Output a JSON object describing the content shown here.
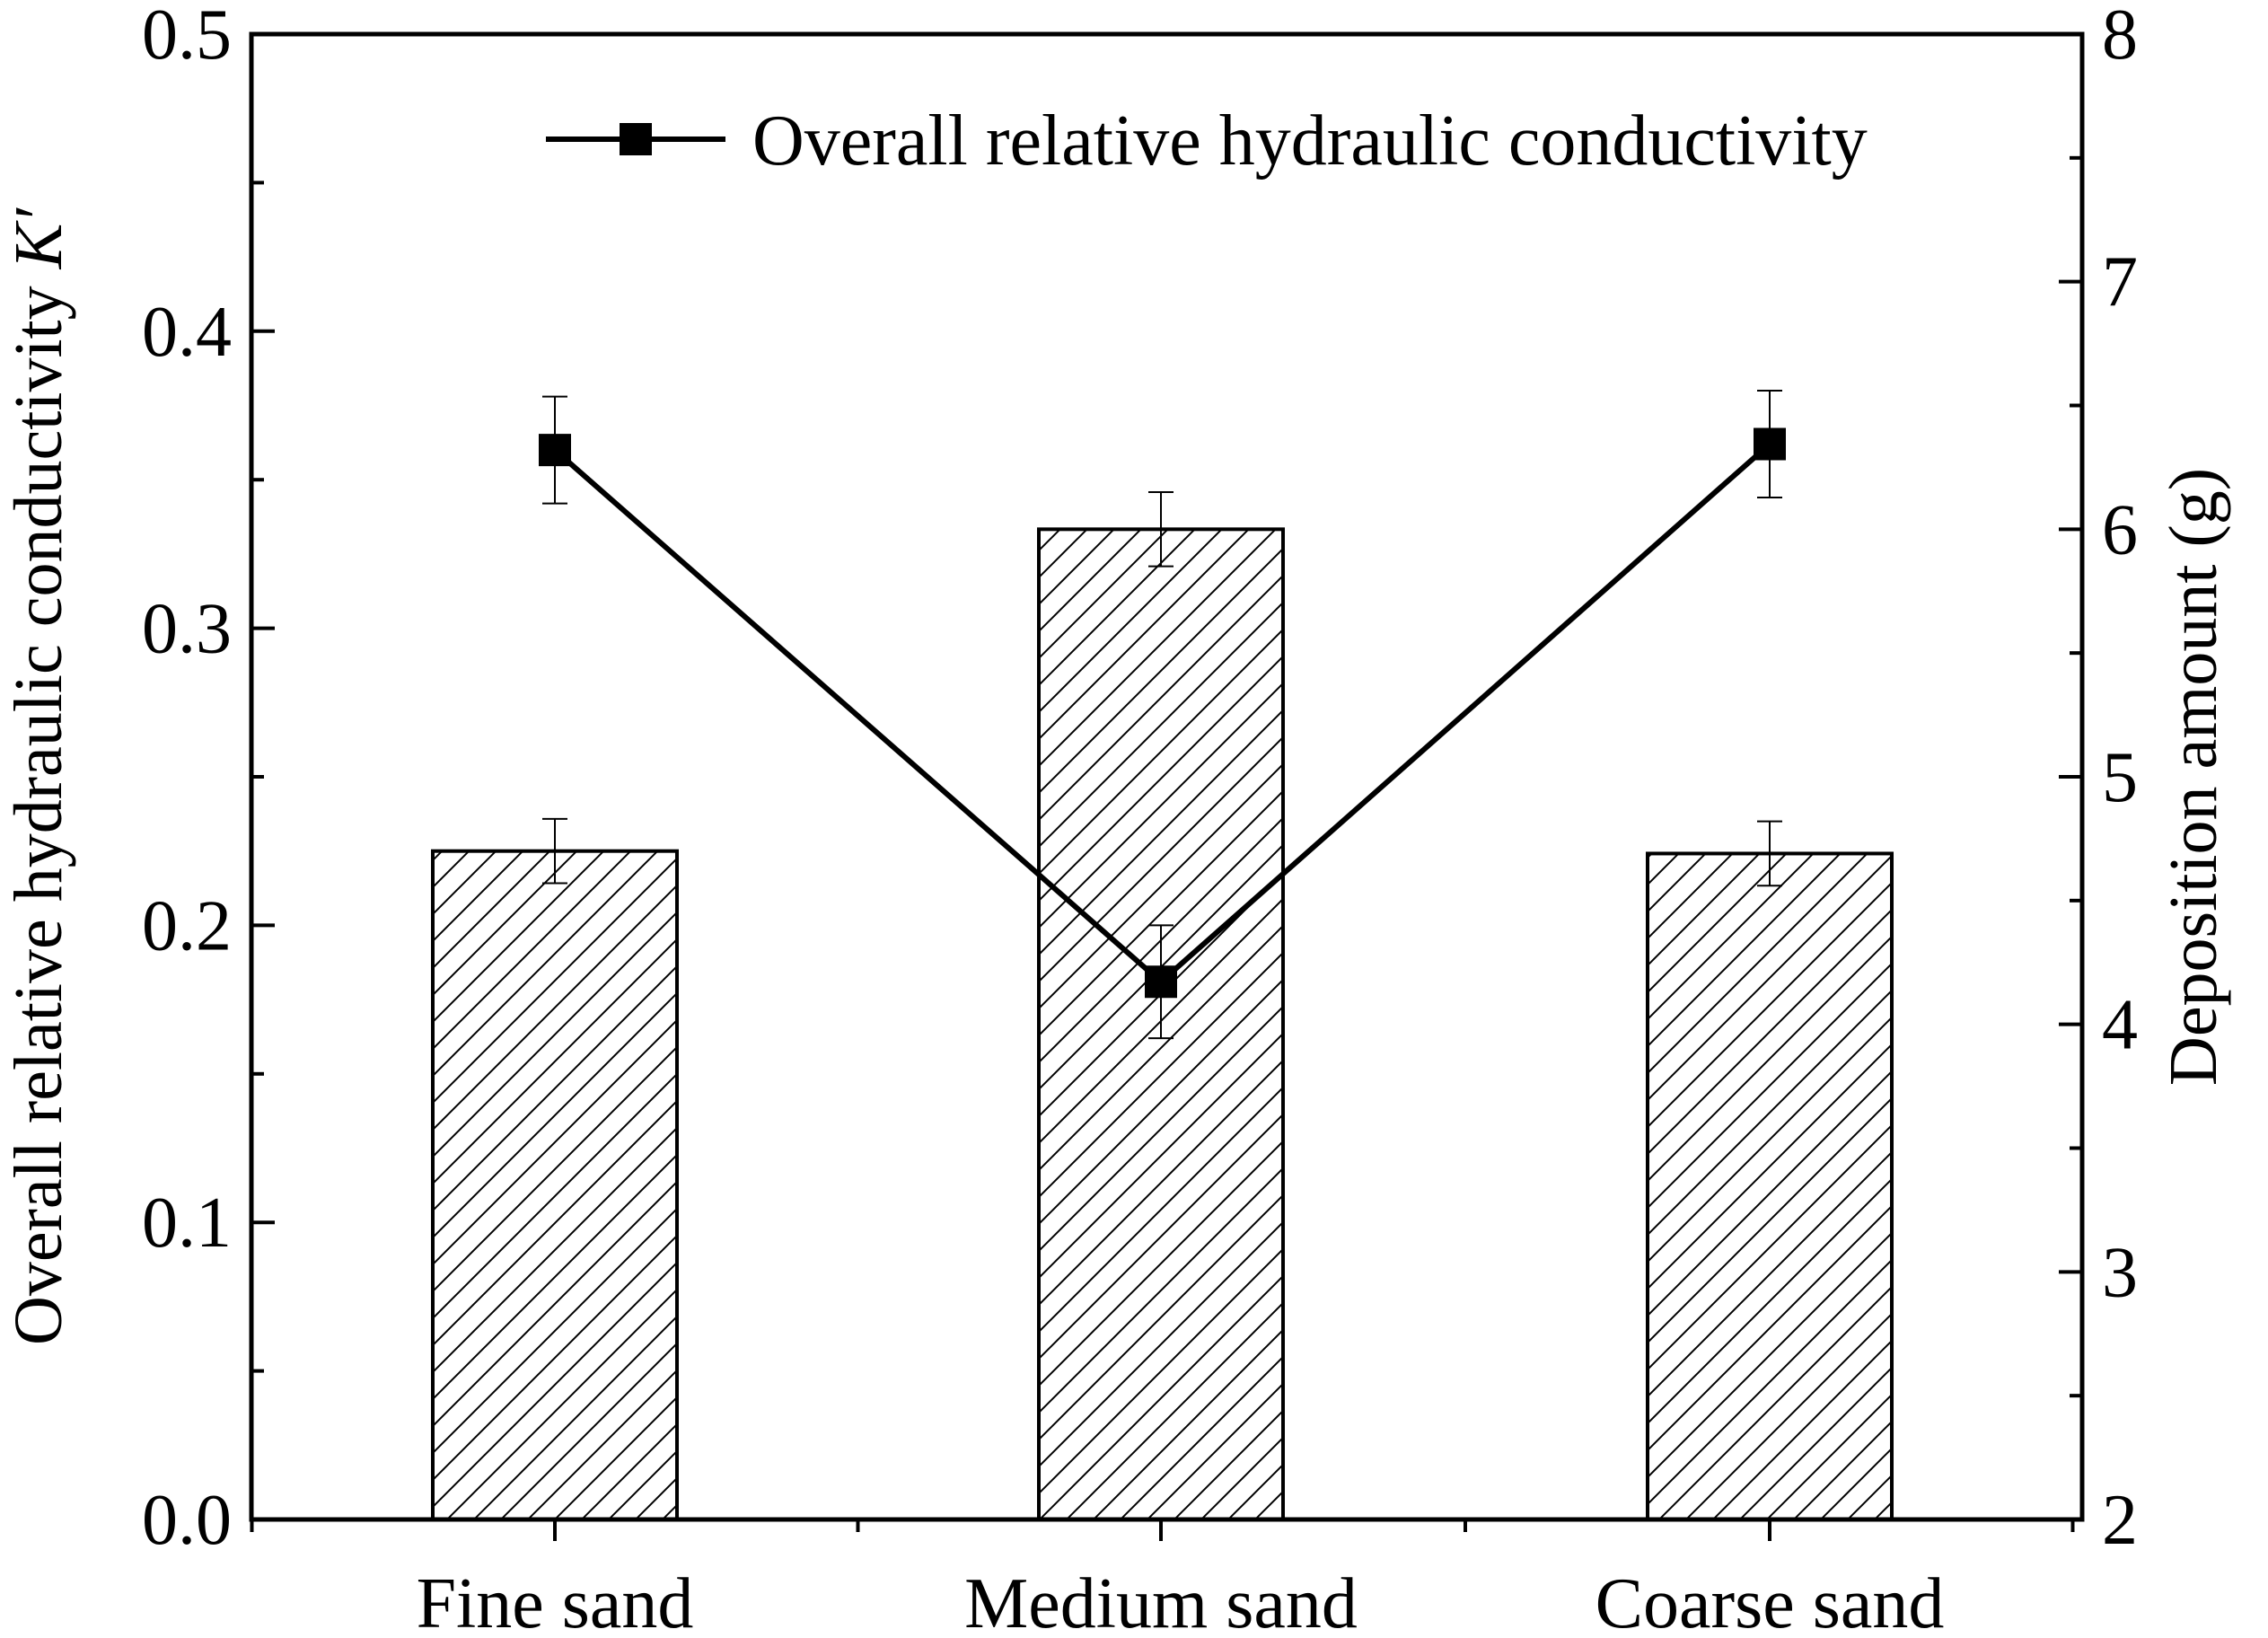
{
  "chart_data": {
    "type": "bar",
    "categories": [
      "Fine sand",
      "Medium sand",
      "Coarse sand"
    ],
    "bars": {
      "axis": "right",
      "values": [
        4.7,
        6.0,
        4.69
      ],
      "error": [
        0.13,
        0.15,
        0.13
      ],
      "fill": "hatched"
    },
    "series": [
      {
        "name": "Overall relative hydraulic conductivity",
        "type": "line",
        "marker": "square",
        "axis": "left",
        "values": [
          0.36,
          0.181,
          0.362
        ],
        "error": [
          0.018,
          0.019,
          0.018
        ]
      }
    ],
    "left_axis": {
      "label": "Overall relative hydraulic conductivity",
      "label_symbol": "K′",
      "range": [
        0.0,
        0.5
      ],
      "ticks": [
        "0.0",
        "0.1",
        "0.2",
        "0.3",
        "0.4",
        "0.5"
      ]
    },
    "right_axis": {
      "label": "Deposition amount (g)",
      "range": [
        2,
        8
      ],
      "ticks": [
        "2",
        "3",
        "4",
        "5",
        "6",
        "7",
        "8"
      ]
    },
    "legend_position": "top-right",
    "colors": {
      "line": "#000000",
      "bar_stroke": "#000000",
      "bar_fill": "#ffffff"
    }
  }
}
